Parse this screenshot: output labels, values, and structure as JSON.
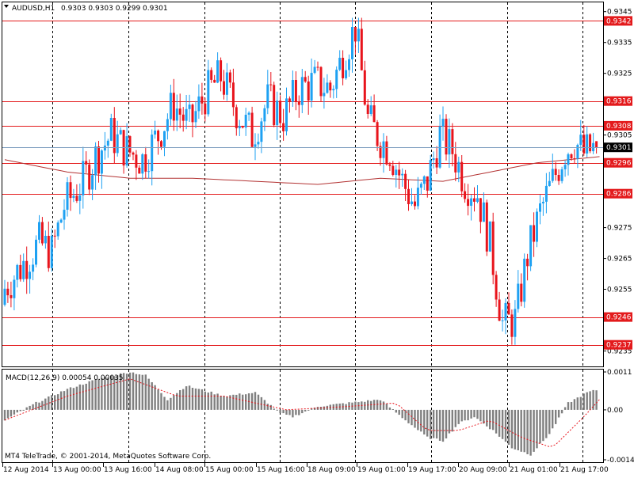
{
  "header": {
    "symbol": "AUDUSD,H1",
    "ohlc": "0.9303 0.9303 0.9299 0.9301"
  },
  "colors": {
    "bull": "#1ea1f2",
    "bear": "#e8141c",
    "hline": "#e31a1c",
    "ma": "#b33333",
    "vgrid": "#000000",
    "macd_bar": "#808080",
    "macd_signal": "#e8141c",
    "current_price_line": "#7f9fbf"
  },
  "chart_data": [
    {
      "type": "candlestick",
      "title": "AUDUSD,H1",
      "ylim": [
        0.923,
        0.9348
      ],
      "y_ticks": [
        "0.9345",
        "0.9335",
        "0.9325",
        "0.9305",
        "0.9275",
        "0.9265",
        "0.9255",
        "0.9235"
      ],
      "x_labels": [
        "12 Aug 2014",
        "13 Aug 00:00",
        "13 Aug 16:00",
        "14 Aug 08:00",
        "15 Aug 00:00",
        "15 Aug 16:00",
        "18 Aug 09:00",
        "19 Aug 01:00",
        "19 Aug 17:00",
        "20 Aug 09:00",
        "21 Aug 01:00",
        "21 Aug 17:00"
      ],
      "current_price": "0.9301",
      "horizontal_levels": [
        "0.9342",
        "0.9316",
        "0.9308",
        "0.9296",
        "0.9286",
        "0.9246",
        "0.9237"
      ],
      "vertical_gridlines": true,
      "candle_count": 150,
      "low_min": 0.9237,
      "high_max": 0.9343,
      "series": [
        {
          "name": "price",
          "close_path": [
            [
              0,
              0.9254
            ],
            [
              6,
              0.9262
            ],
            [
              12,
              0.927
            ],
            [
              16,
              0.9267
            ],
            [
              20,
              0.9282
            ],
            [
              26,
              0.929
            ],
            [
              30,
              0.9298
            ],
            [
              35,
              0.9305
            ],
            [
              40,
              0.93
            ],
            [
              45,
              0.9297
            ],
            [
              50,
              0.9305
            ],
            [
              55,
              0.9315
            ],
            [
              60,
              0.9308
            ],
            [
              65,
              0.9318
            ],
            [
              70,
              0.9324
            ],
            [
              75,
              0.9313
            ],
            [
              80,
              0.9305
            ],
            [
              85,
              0.9316
            ],
            [
              90,
              0.9311
            ],
            [
              95,
              0.932
            ],
            [
              100,
              0.9322
            ],
            [
              105,
              0.932
            ],
            [
              110,
              0.9333
            ],
            [
              113,
              0.934
            ],
            [
              117,
              0.931
            ],
            [
              120,
              0.9305
            ],
            [
              124,
              0.93
            ],
            [
              128,
              0.929
            ],
            [
              132,
              0.9282
            ],
            [
              136,
              0.929
            ],
            [
              140,
              0.9305
            ],
            [
              144,
              0.93
            ],
            [
              148,
              0.929
            ],
            [
              152,
              0.9286
            ],
            [
              156,
              0.927
            ],
            [
              160,
              0.9244
            ],
            [
              164,
              0.9245
            ],
            [
              168,
              0.9266
            ],
            [
              172,
              0.928
            ],
            [
              176,
              0.929
            ],
            [
              180,
              0.93
            ],
            [
              183,
              0.9303
            ],
            [
              186,
              0.9299
            ],
            [
              190,
              0.9301
            ]
          ]
        },
        {
          "name": "moving-average",
          "path": [
            [
              0,
              0.9297
            ],
            [
              20,
              0.9293
            ],
            [
              40,
              0.9291
            ],
            [
              60,
              0.9291
            ],
            [
              80,
              0.929
            ],
            [
              100,
              0.9289
            ],
            [
              120,
              0.9291
            ],
            [
              140,
              0.929
            ],
            [
              155,
              0.9293
            ],
            [
              170,
              0.9296
            ],
            [
              180,
              0.9297
            ],
            [
              190,
              0.9298
            ]
          ]
        }
      ]
    },
    {
      "type": "bar",
      "title": "MACD(12,26,9) 0.00054 0.00035",
      "ylim": [
        -0.00145,
        0.0011
      ],
      "y_ticks": [
        "0.0011",
        "0.00",
        "-0.00145"
      ],
      "series": [
        {
          "name": "macd",
          "path": [
            [
              0,
              -0.0003
            ],
            [
              10,
              0.0002
            ],
            [
              20,
              0.0006
            ],
            [
              30,
              0.0009
            ],
            [
              40,
              0.0011
            ],
            [
              45,
              0.001
            ],
            [
              52,
              0.0003
            ],
            [
              58,
              0.0007
            ],
            [
              62,
              0.0006
            ],
            [
              70,
              0.0004
            ],
            [
              80,
              0.0005
            ],
            [
              88,
              -0.0001
            ],
            [
              92,
              -0.0002
            ],
            [
              100,
              0.0001
            ],
            [
              110,
              0.0002
            ],
            [
              120,
              0.0003
            ],
            [
              128,
              -0.0003
            ],
            [
              135,
              -0.0008
            ],
            [
              140,
              -0.0009
            ],
            [
              145,
              -0.0004
            ],
            [
              150,
              -0.0002
            ],
            [
              156,
              -0.0006
            ],
            [
              162,
              -0.0011
            ],
            [
              168,
              -0.0013
            ],
            [
              174,
              -0.0007
            ],
            [
              180,
              0.0002
            ],
            [
              186,
              0.0005
            ],
            [
              190,
              0.0006
            ]
          ]
        },
        {
          "name": "signal",
          "path": [
            [
              0,
              -0.0003
            ],
            [
              20,
              0.0004
            ],
            [
              40,
              0.0009
            ],
            [
              55,
              0.0004
            ],
            [
              70,
              0.0004
            ],
            [
              90,
              0.0
            ],
            [
              110,
              0.0001
            ],
            [
              125,
              0.0002
            ],
            [
              135,
              -0.0006
            ],
            [
              145,
              -0.0006
            ],
            [
              155,
              -0.0003
            ],
            [
              165,
              -0.0008
            ],
            [
              175,
              -0.0011
            ],
            [
              185,
              -0.0002
            ],
            [
              190,
              0.0003
            ]
          ]
        }
      ]
    }
  ],
  "footer": {
    "copyright": "MT4 TeleTrade, © 2001-2014, MetaQuotes Software Corp."
  }
}
